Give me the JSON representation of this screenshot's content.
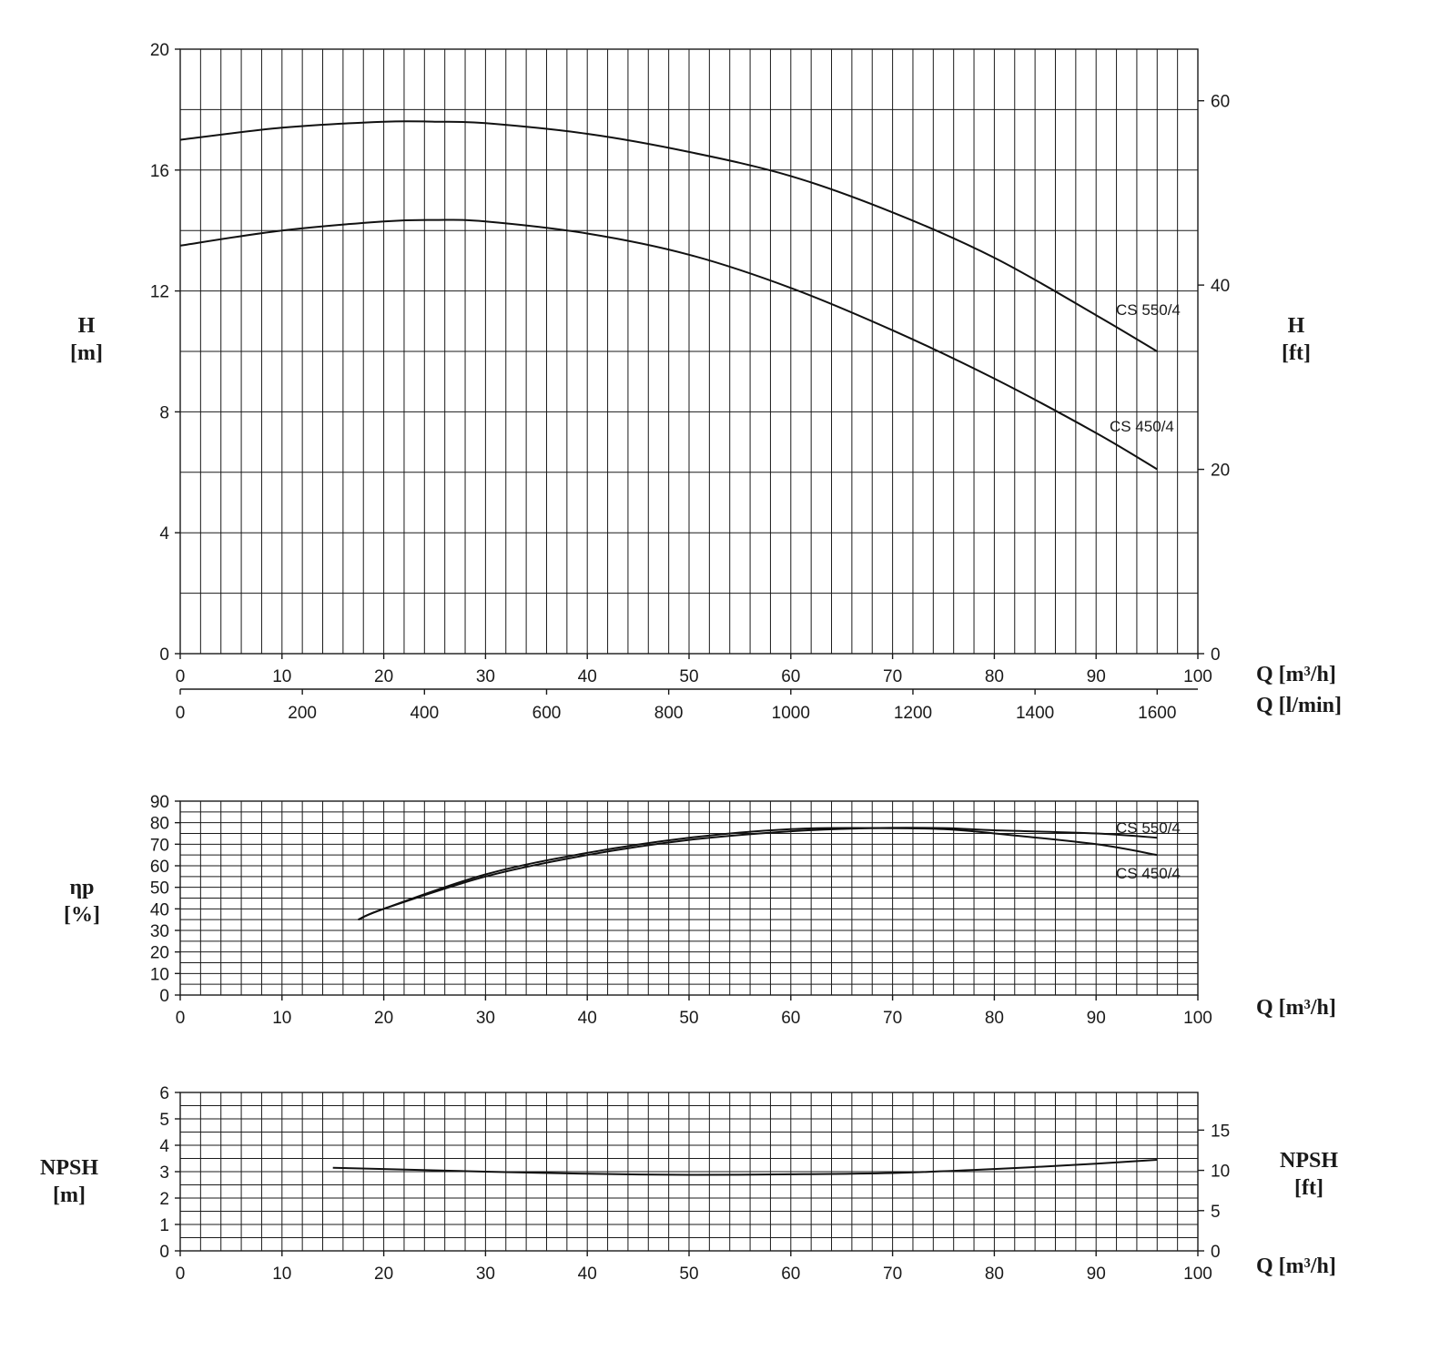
{
  "chart_data": [
    {
      "type": "line",
      "xlabel": "Q [m³/h]",
      "xlabel2": "Q [l/min]",
      "ylabel": "H\n[m]",
      "ylabel_right": "H\n[ft]",
      "xlim": [
        0,
        100
      ],
      "ylim": [
        0,
        20
      ],
      "xticks": [
        "0",
        "10",
        "20",
        "30",
        "40",
        "50",
        "60",
        "70",
        "80",
        "90",
        "100"
      ],
      "xticks2": [
        "0",
        "200",
        "400",
        "600",
        "800",
        "1000",
        "1200",
        "1400",
        "1600"
      ],
      "xticks2_values": [
        0,
        200,
        400,
        600,
        800,
        1000,
        1200,
        1400,
        1600
      ],
      "yticks": [
        "0",
        "4",
        "8",
        "12",
        "16",
        "20"
      ],
      "yticks_right": [
        "0",
        "20",
        "40",
        "60"
      ],
      "yticks_right_values": [
        0,
        20,
        40,
        60
      ],
      "grid": true,
      "series": [
        {
          "name": "CS 550/4",
          "x": [
            0,
            10,
            20,
            25,
            30,
            40,
            50,
            60,
            70,
            80,
            90,
            96
          ],
          "y": [
            17.0,
            17.4,
            17.6,
            17.6,
            17.55,
            17.2,
            16.6,
            15.8,
            14.6,
            13.1,
            11.2,
            10.0
          ]
        },
        {
          "name": "CS 450/4",
          "x": [
            0,
            10,
            20,
            25,
            30,
            40,
            50,
            60,
            70,
            80,
            90,
            96
          ],
          "y": [
            13.5,
            14.0,
            14.3,
            14.35,
            14.3,
            13.9,
            13.2,
            12.1,
            10.7,
            9.1,
            7.3,
            6.1
          ]
        }
      ]
    },
    {
      "type": "line",
      "xlabel": "Q [m³/h]",
      "ylabel": "ηp\n[%]",
      "xlim": [
        0,
        100
      ],
      "ylim": [
        0,
        90
      ],
      "xticks": [
        "0",
        "10",
        "20",
        "30",
        "40",
        "50",
        "60",
        "70",
        "80",
        "90",
        "100"
      ],
      "yticks": [
        "0",
        "10",
        "20",
        "30",
        "40",
        "50",
        "60",
        "70",
        "80",
        "90"
      ],
      "grid": true,
      "series": [
        {
          "name": "CS 550/4",
          "x": [
            17.5,
            20,
            30,
            40,
            50,
            60,
            68,
            75,
            80,
            90,
            96
          ],
          "y": [
            35,
            40,
            55,
            65,
            72,
            76,
            77.5,
            77.5,
            76.5,
            75,
            73
          ]
        },
        {
          "name": "CS 450/4",
          "x": [
            17.5,
            20,
            30,
            40,
            50,
            60,
            68,
            75,
            80,
            90,
            96
          ],
          "y": [
            35,
            40,
            56,
            66,
            73,
            77,
            77.5,
            77,
            75,
            70,
            65
          ]
        }
      ]
    },
    {
      "type": "line",
      "xlabel": "Q [m³/h]",
      "ylabel": "NPSH\n[m]",
      "ylabel_right": "NPSH\n[ft]",
      "xlim": [
        0,
        100
      ],
      "ylim": [
        0,
        6
      ],
      "xticks": [
        "0",
        "10",
        "20",
        "30",
        "40",
        "50",
        "60",
        "70",
        "80",
        "90",
        "100"
      ],
      "yticks": [
        "0",
        "1",
        "2",
        "3",
        "4",
        "5",
        "6"
      ],
      "yticks_right": [
        "0",
        "5",
        "10",
        "15"
      ],
      "yticks_right_values": [
        0,
        5,
        10,
        15
      ],
      "grid": true,
      "series": [
        {
          "x": [
            15,
            20,
            30,
            40,
            50,
            60,
            70,
            80,
            90,
            96
          ],
          "y": [
            3.15,
            3.1,
            3.0,
            2.92,
            2.88,
            2.9,
            2.95,
            3.1,
            3.3,
            3.45
          ]
        }
      ]
    }
  ]
}
